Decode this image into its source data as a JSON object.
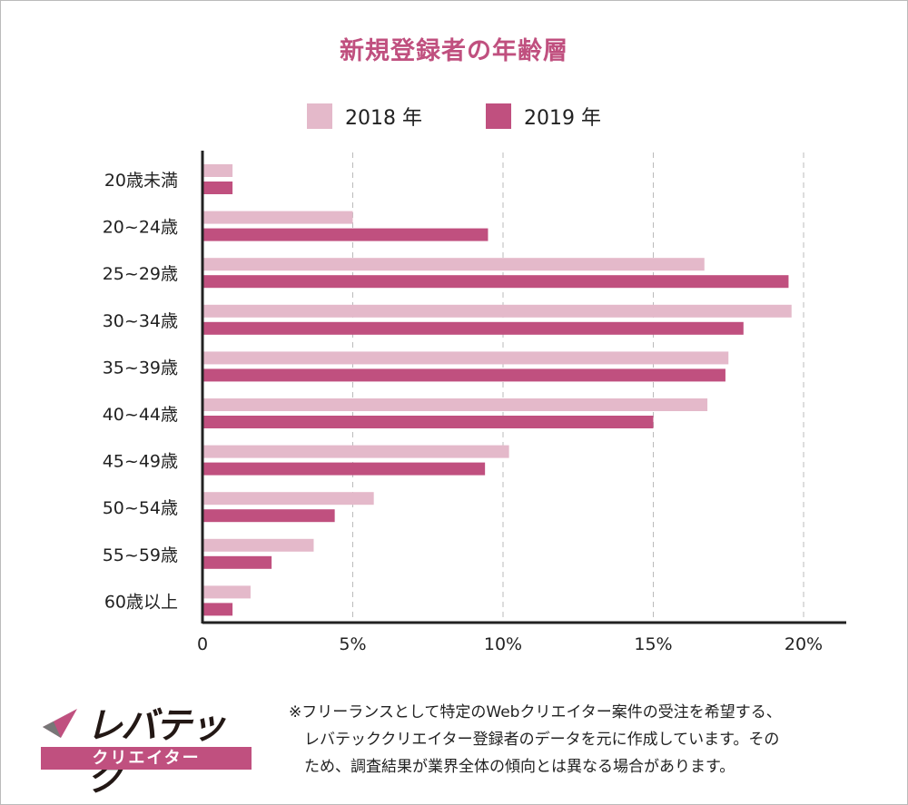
{
  "colors": {
    "y2018": "#e4b9ca",
    "y2019": "#c0507f",
    "title": "#c0507f"
  },
  "chart_data": {
    "type": "bar",
    "orientation": "horizontal",
    "title": "新規登録者の年齢層",
    "categories": [
      "20歳未満",
      "20~24歳",
      "25~29歳",
      "30~34歳",
      "35~39歳",
      "40~44歳",
      "45~49歳",
      "50~54歳",
      "55~59歳",
      "60歳以上"
    ],
    "series": [
      {
        "name": "2018 年",
        "values": [
          1.0,
          5.0,
          16.7,
          19.6,
          17.5,
          16.8,
          10.2,
          5.7,
          3.7,
          1.6
        ]
      },
      {
        "name": "2019 年",
        "values": [
          1.0,
          9.5,
          19.5,
          18.0,
          17.4,
          15.0,
          9.4,
          4.4,
          2.3,
          1.0
        ]
      }
    ],
    "xlim": [
      0,
      21.5
    ],
    "xticks": [
      0,
      5,
      10,
      15,
      20
    ],
    "xtick_labels": [
      "0",
      "5%",
      "10%",
      "15%",
      "20%"
    ],
    "grid": "vertical dashed",
    "legend": "top-center",
    "xlabel": "",
    "ylabel": ""
  },
  "logo": {
    "name": "レバテック",
    "sub": "クリエイター"
  },
  "note": "※フリーランスとして特定のWebクリエイター案件の受注を希望する、\n　レバテッククリエイター登録者のデータを元に作成しています。その\n　ため、調査結果が業界全体の傾向とは異なる場合があります。"
}
